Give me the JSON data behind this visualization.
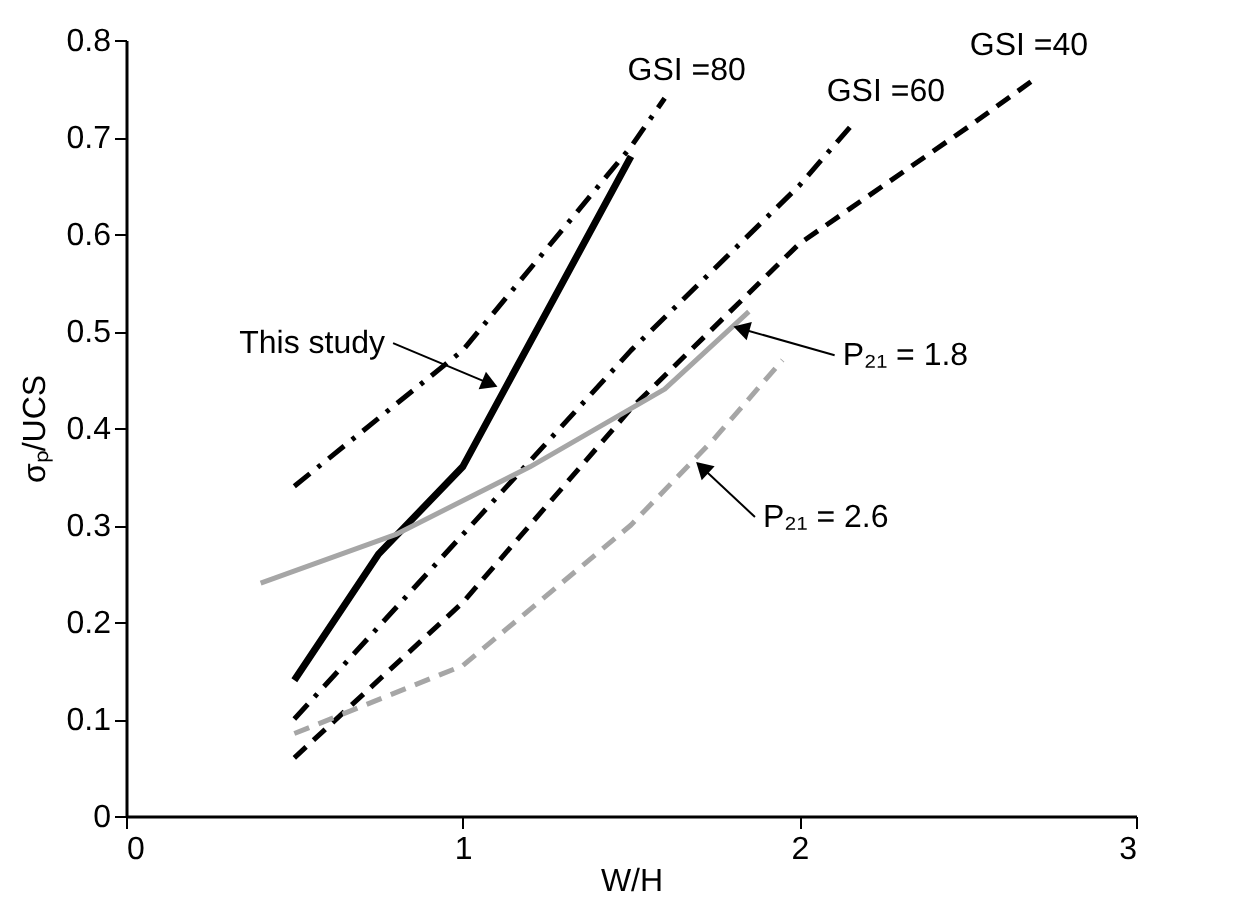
{
  "chart_data": {
    "type": "line",
    "xlabel": "W/H",
    "ylabel": "σₚ/UCS",
    "xlim": [
      0,
      3
    ],
    "ylim": [
      0,
      0.8
    ],
    "xticks": [
      0,
      1,
      2,
      3
    ],
    "yticks": [
      0,
      0.1,
      0.2,
      0.3,
      0.4,
      0.5,
      0.6,
      0.7,
      0.8
    ],
    "grid": false,
    "marker": "none",
    "series": [
      {
        "color": "#000000",
        "line_style": "solid",
        "x": [
          0.5,
          0.75,
          1.0,
          1.25,
          1.5
        ],
        "values": [
          0.14,
          0.27,
          0.36,
          0.52,
          0.68
        ]
      },
      {
        "color": "#000000",
        "line_style": "dashdot",
        "x": [
          0.5,
          1.0,
          1.5,
          1.6
        ],
        "values": [
          0.34,
          0.48,
          0.69,
          0.74
        ]
      },
      {
        "color": "#000000",
        "line_style": "dashdot",
        "x": [
          0.5,
          1.0,
          1.5,
          2.0,
          2.15
        ],
        "values": [
          0.1,
          0.29,
          0.48,
          0.65,
          0.71
        ]
      },
      {
        "color": "#000000",
        "line_style": "dashed",
        "x": [
          0.5,
          1.0,
          1.5,
          2.0,
          2.5,
          2.7
        ],
        "values": [
          0.06,
          0.22,
          0.42,
          0.59,
          0.71,
          0.76
        ]
      },
      {
        "color": "#a6a6a6",
        "line_style": "solid",
        "x": [
          0.4,
          0.8,
          1.2,
          1.6,
          1.85
        ],
        "values": [
          0.24,
          0.29,
          0.36,
          0.44,
          0.52
        ]
      },
      {
        "color": "#a6a6a6",
        "line_style": "dashed",
        "x": [
          0.5,
          1.0,
          1.5,
          1.75,
          1.95
        ],
        "values": [
          0.085,
          0.155,
          0.3,
          0.39,
          0.47
        ]
      }
    ],
    "annotations": [
      {
        "text": "This study",
        "x": 1.12,
        "y": 0.44
      },
      {
        "text": "P₂₁ = 1.8",
        "x": 1.79,
        "y": 0.506
      },
      {
        "text": "P₂₁ = 2.6",
        "x": 1.69,
        "y": 0.366
      },
      {
        "text": "GSI =80",
        "x": 1.6,
        "y": 0.74
      },
      {
        "text": "GSI =60",
        "x": 2.15,
        "y": 0.71
      },
      {
        "text": "GSI =40",
        "x": 2.7,
        "y": 0.77
      }
    ]
  }
}
